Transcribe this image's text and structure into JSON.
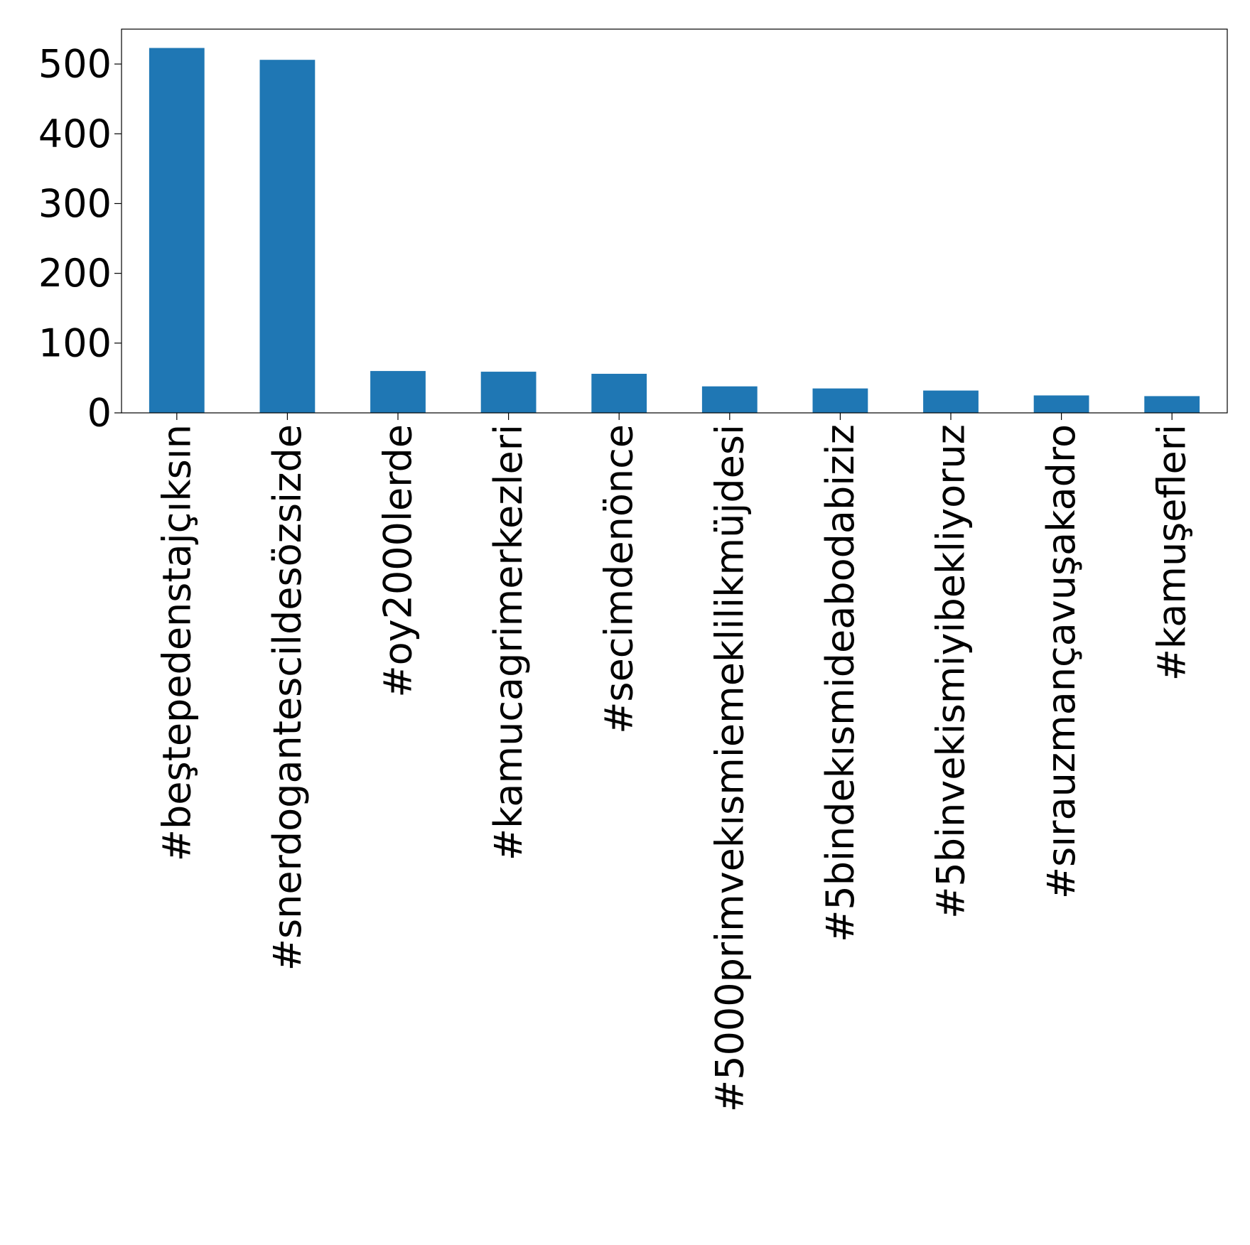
{
  "chart_data": {
    "type": "bar",
    "title": "",
    "xlabel": "",
    "ylabel": "",
    "categories": [
      "#beştepedenstajçıksın",
      "#snerdogantescildesözsizde",
      "#oy2000lerde",
      "#kamucagrimerkezleri",
      "#secimdenönce",
      "#5000primvekısmiemeklilikmüjdesi",
      "#5bindekısmideabodabiziz",
      "#5binvekismiyibekliyoruz",
      "#sırauzmançavuşakadro",
      "#kamuşefleri"
    ],
    "values": [
      523,
      506,
      60,
      59,
      56,
      38,
      35,
      32,
      25,
      24
    ],
    "ylim": [
      0,
      550
    ],
    "yticks": [
      0,
      100,
      200,
      300,
      400,
      500
    ],
    "bar_color": "#1f77b4",
    "grid": false,
    "legend": "none"
  }
}
